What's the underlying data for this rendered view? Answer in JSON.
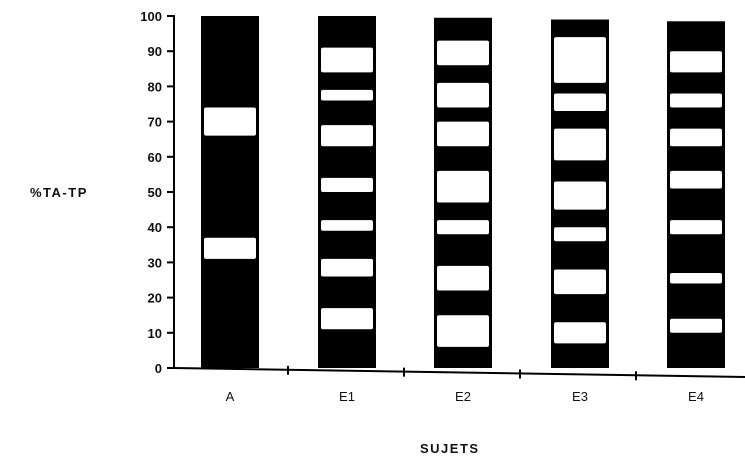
{
  "chart_data": {
    "type": "bar",
    "title": "",
    "xlabel": "SUJETS",
    "ylabel": "%TA-TP",
    "ylim": [
      0,
      100
    ],
    "yticks": [
      "0",
      "10",
      "20",
      "30",
      "40",
      "50",
      "60",
      "70",
      "80",
      "90",
      "100"
    ],
    "categories": [
      "A",
      "E1",
      "E2",
      "E3",
      "E4"
    ],
    "values": [
      100,
      100,
      99.5,
      99,
      98.5
    ],
    "white_bands": [
      [
        [
          31,
          37
        ],
        [
          66,
          74
        ]
      ],
      [
        [
          11,
          17
        ],
        [
          26,
          31
        ],
        [
          39,
          42
        ],
        [
          50,
          54
        ],
        [
          63,
          69
        ],
        [
          76,
          79
        ],
        [
          84,
          91
        ]
      ],
      [
        [
          6,
          15
        ],
        [
          22,
          29
        ],
        [
          38,
          42
        ],
        [
          47,
          56
        ],
        [
          63,
          70
        ],
        [
          74,
          81
        ],
        [
          86,
          93
        ]
      ],
      [
        [
          7,
          13
        ],
        [
          21,
          28
        ],
        [
          36,
          40
        ],
        [
          45,
          53
        ],
        [
          59,
          68
        ],
        [
          73,
          78
        ],
        [
          81,
          94
        ]
      ],
      [
        [
          10,
          14
        ],
        [
          24,
          27
        ],
        [
          38,
          42
        ],
        [
          51,
          56
        ],
        [
          63,
          68
        ],
        [
          74,
          78
        ],
        [
          84,
          90
        ]
      ]
    ],
    "colors": {
      "bar": "#000000",
      "band": "#ffffff",
      "axis": "#000000"
    },
    "grid": false,
    "legend": "none"
  }
}
